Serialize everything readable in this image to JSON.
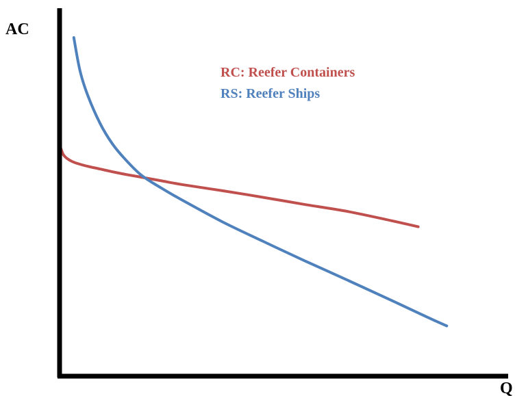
{
  "chart_data": {
    "type": "line",
    "title": "",
    "xlabel": "Q",
    "ylabel": "AC",
    "xlim": [
      0,
      100
    ],
    "ylim": [
      0,
      100
    ],
    "grid": false,
    "legend_position": "top-center",
    "series": [
      {
        "key": "rc",
        "name": "RC: Reefer Containers",
        "color": "#C0504D",
        "x": [
          0,
          1,
          3,
          6,
          10,
          15,
          20,
          25,
          30,
          40,
          50,
          60,
          70,
          80,
          88
        ],
        "y": [
          63,
          60,
          58.3,
          57.2,
          56.2,
          55,
          54,
          53,
          52,
          50.3,
          48.5,
          46.6,
          44.8,
          42.5,
          40.5
        ]
      },
      {
        "key": "rs",
        "name": "RS: Reefer Ships",
        "color": "#4F81BD",
        "x": [
          3.5,
          5,
          7,
          10,
          13,
          16,
          20,
          25,
          30,
          40,
          50,
          60,
          70,
          80,
          90,
          95
        ],
        "y": [
          92,
          83,
          76,
          68.5,
          63,
          59,
          54.6,
          51,
          47.8,
          41.8,
          36.5,
          31.3,
          26.3,
          21.2,
          16,
          13.5
        ]
      }
    ]
  }
}
